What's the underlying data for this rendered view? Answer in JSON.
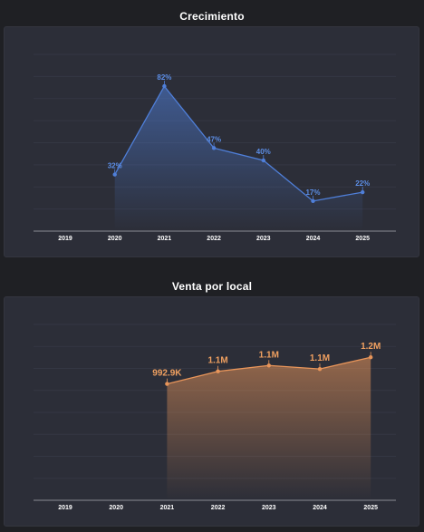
{
  "chart_data": [
    {
      "type": "area",
      "title": "Crecimiento",
      "categories": [
        "2019",
        "2020",
        "2021",
        "2022",
        "2023",
        "2024",
        "2025"
      ],
      "series": [
        {
          "values": [
            null,
            32,
            82,
            47,
            40,
            17,
            22
          ],
          "labels": [
            null,
            "32%",
            "82%",
            "47%",
            "40%",
            "17%",
            "22%"
          ]
        }
      ],
      "ylim": [
        0,
        100
      ],
      "grid": true,
      "color": "#4f7fd9"
    },
    {
      "type": "area",
      "title": "Venta por local",
      "categories": [
        "2019",
        "2020",
        "2021",
        "2022",
        "2023",
        "2024",
        "2025"
      ],
      "series": [
        {
          "values": [
            null,
            null,
            992900,
            1100000,
            1150000,
            1120000,
            1220000
          ],
          "labels": [
            null,
            null,
            "992.9K",
            "1.1M",
            "1.1M",
            "1.1M",
            "1.2M"
          ]
        }
      ],
      "ylim": [
        0,
        1500000
      ],
      "grid": true,
      "color": "#e8955a"
    }
  ]
}
